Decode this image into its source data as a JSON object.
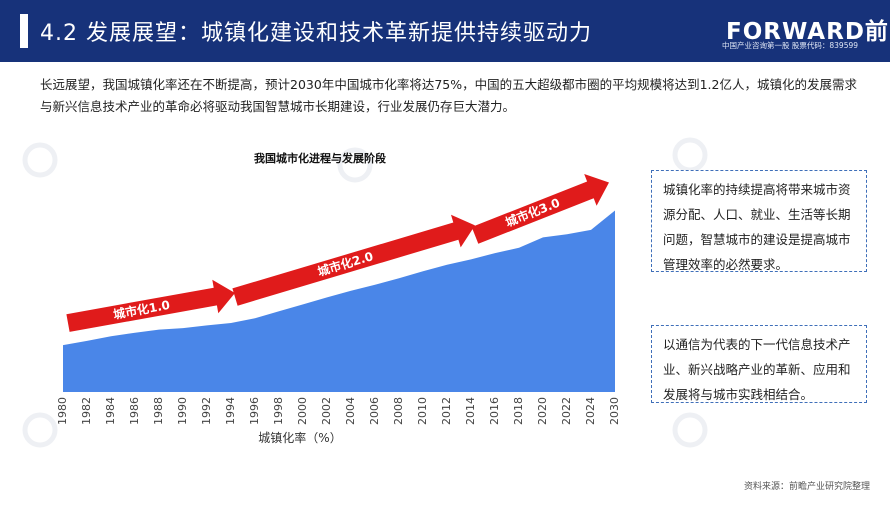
{
  "header": {
    "title": "4.2 发展展望：城镇化建设和技术革新提供持续驱动力",
    "logo_text": "FORWARD前瞻",
    "logo_subtitle": "中国产业咨询第一股  股票代码：839599",
    "background_color": "#17327a"
  },
  "intro": "长远展望，我国城镇化率还在不断提高，预计2030年中国城市化率将达75%，中国的五大超级都市圈的平均规模将达到1.2亿人，城镇化的发展需求与新兴信息技术产业的革命必将驱动我国智慧城市长期建设，行业发展仍存巨大潜力。",
  "notes": [
    "城镇化率的持续提高将带来城市资源分配、人口、就业、生活等长期问题，智慧城市的建设是提高城市管理效率的必然要求。",
    "以通信为代表的下一代信息技术产业、新兴战略产业的革新、应用和发展将与城市实践相结合。"
  ],
  "source": "资料来源：前瞻产业研究院整理",
  "watermark_icon": "forward-logo-watermark-icon",
  "chart_data": {
    "type": "area",
    "title": "我国城市化进程与发展阶段",
    "xlabel": "城镇化率（%）",
    "ylabel": "",
    "x": [
      "1980",
      "1982",
      "1984",
      "1986",
      "1988",
      "1990",
      "1992",
      "1994",
      "1996",
      "1998",
      "2000",
      "2002",
      "2004",
      "2006",
      "2008",
      "2010",
      "2012",
      "2014",
      "2016",
      "2018",
      "2020",
      "2022",
      "2024",
      "2030"
    ],
    "values": [
      19.4,
      21.1,
      23.0,
      24.5,
      25.8,
      26.4,
      27.5,
      28.5,
      30.5,
      33.4,
      36.2,
      39.1,
      41.8,
      44.3,
      47.0,
      49.9,
      52.6,
      54.8,
      57.4,
      59.6,
      63.9,
      65.2,
      67.0,
      75.0
    ],
    "ylim": [
      0,
      100
    ],
    "grid": false,
    "legend": "none",
    "area_color": "#4a86e8",
    "annotations": [
      {
        "label": "城市化1.0",
        "from_year": "1980",
        "to_year": "1994"
      },
      {
        "label": "城市化2.0",
        "from_year": "1994",
        "to_year": "2014"
      },
      {
        "label": "城市化3.0",
        "from_year": "2014",
        "to_year": "2030"
      }
    ],
    "arrow_color": "#e01b1b"
  }
}
